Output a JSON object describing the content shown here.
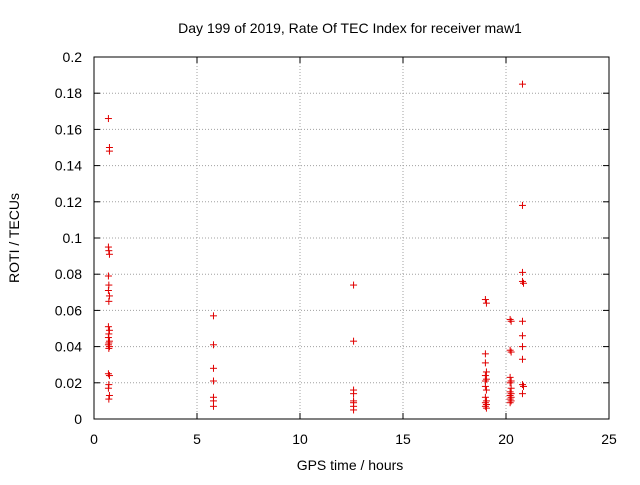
{
  "chart_data": {
    "type": "scatter",
    "title": "Day 199 of 2019, Rate Of TEC Index for receiver maw1",
    "xlabel": "GPS time / hours",
    "ylabel": "ROTI / TECUs",
    "xlim": [
      0,
      25
    ],
    "ylim": [
      0,
      0.2
    ],
    "grid": true,
    "marker": "+",
    "marker_color": "#e00000",
    "x_ticks": [
      {
        "value": 0,
        "label": "0"
      },
      {
        "value": 5,
        "label": "5"
      },
      {
        "value": 10,
        "label": "10"
      },
      {
        "value": 15,
        "label": "15"
      },
      {
        "value": 20,
        "label": "20"
      },
      {
        "value": 25,
        "label": "25"
      }
    ],
    "y_ticks": [
      {
        "value": 0,
        "label": "0"
      },
      {
        "value": 0.02,
        "label": "0.02"
      },
      {
        "value": 0.04,
        "label": "0.04"
      },
      {
        "value": 0.06,
        "label": "0.06"
      },
      {
        "value": 0.08,
        "label": "0.08"
      },
      {
        "value": 0.1,
        "label": "0.1"
      },
      {
        "value": 0.12,
        "label": "0.12"
      },
      {
        "value": 0.14,
        "label": "0.14"
      },
      {
        "value": 0.16,
        "label": "0.16"
      },
      {
        "value": 0.18,
        "label": "0.18"
      },
      {
        "value": 0.2,
        "label": "0.2"
      }
    ],
    "series": [
      {
        "name": "maw1",
        "points": [
          [
            0.7,
            0.166
          ],
          [
            0.75,
            0.15
          ],
          [
            0.75,
            0.148
          ],
          [
            0.7,
            0.095
          ],
          [
            0.72,
            0.093
          ],
          [
            0.75,
            0.091
          ],
          [
            0.7,
            0.079
          ],
          [
            0.72,
            0.074
          ],
          [
            0.7,
            0.071
          ],
          [
            0.75,
            0.068
          ],
          [
            0.72,
            0.065
          ],
          [
            0.7,
            0.051
          ],
          [
            0.75,
            0.049
          ],
          [
            0.72,
            0.047
          ],
          [
            0.7,
            0.045
          ],
          [
            0.75,
            0.043
          ],
          [
            0.72,
            0.042
          ],
          [
            0.7,
            0.041
          ],
          [
            0.75,
            0.04
          ],
          [
            0.72,
            0.039
          ],
          [
            0.7,
            0.025
          ],
          [
            0.75,
            0.024
          ],
          [
            0.72,
            0.019
          ],
          [
            0.7,
            0.017
          ],
          [
            0.75,
            0.013
          ],
          [
            0.72,
            0.011
          ],
          [
            5.8,
            0.057
          ],
          [
            5.8,
            0.041
          ],
          [
            5.8,
            0.028
          ],
          [
            5.8,
            0.021
          ],
          [
            5.8,
            0.012
          ],
          [
            5.8,
            0.01
          ],
          [
            5.8,
            0.007
          ],
          [
            12.6,
            0.074
          ],
          [
            12.6,
            0.043
          ],
          [
            12.6,
            0.016
          ],
          [
            12.6,
            0.014
          ],
          [
            12.6,
            0.01
          ],
          [
            12.6,
            0.009
          ],
          [
            12.6,
            0.007
          ],
          [
            12.6,
            0.005
          ],
          [
            19.0,
            0.066
          ],
          [
            19.05,
            0.064
          ],
          [
            19.0,
            0.036
          ],
          [
            19.0,
            0.031
          ],
          [
            19.05,
            0.026
          ],
          [
            19.0,
            0.024
          ],
          [
            19.05,
            0.022
          ],
          [
            19.0,
            0.021
          ],
          [
            19.0,
            0.018
          ],
          [
            19.05,
            0.016
          ],
          [
            19.0,
            0.012
          ],
          [
            19.05,
            0.01
          ],
          [
            19.0,
            0.009
          ],
          [
            19.05,
            0.008
          ],
          [
            19.0,
            0.007
          ],
          [
            19.05,
            0.006
          ],
          [
            20.2,
            0.055
          ],
          [
            20.25,
            0.054
          ],
          [
            20.2,
            0.038
          ],
          [
            20.25,
            0.037
          ],
          [
            20.2,
            0.023
          ],
          [
            20.25,
            0.021
          ],
          [
            20.2,
            0.02
          ],
          [
            20.25,
            0.017
          ],
          [
            20.2,
            0.015
          ],
          [
            20.25,
            0.014
          ],
          [
            20.2,
            0.013
          ],
          [
            20.25,
            0.012
          ],
          [
            20.2,
            0.011
          ],
          [
            20.25,
            0.01
          ],
          [
            20.2,
            0.009
          ],
          [
            20.8,
            0.185
          ],
          [
            20.8,
            0.118
          ],
          [
            20.8,
            0.081
          ],
          [
            20.8,
            0.076
          ],
          [
            20.85,
            0.075
          ],
          [
            20.8,
            0.054
          ],
          [
            20.8,
            0.046
          ],
          [
            20.8,
            0.04
          ],
          [
            20.8,
            0.033
          ],
          [
            20.8,
            0.019
          ],
          [
            20.85,
            0.018
          ],
          [
            20.8,
            0.014
          ]
        ]
      }
    ]
  }
}
